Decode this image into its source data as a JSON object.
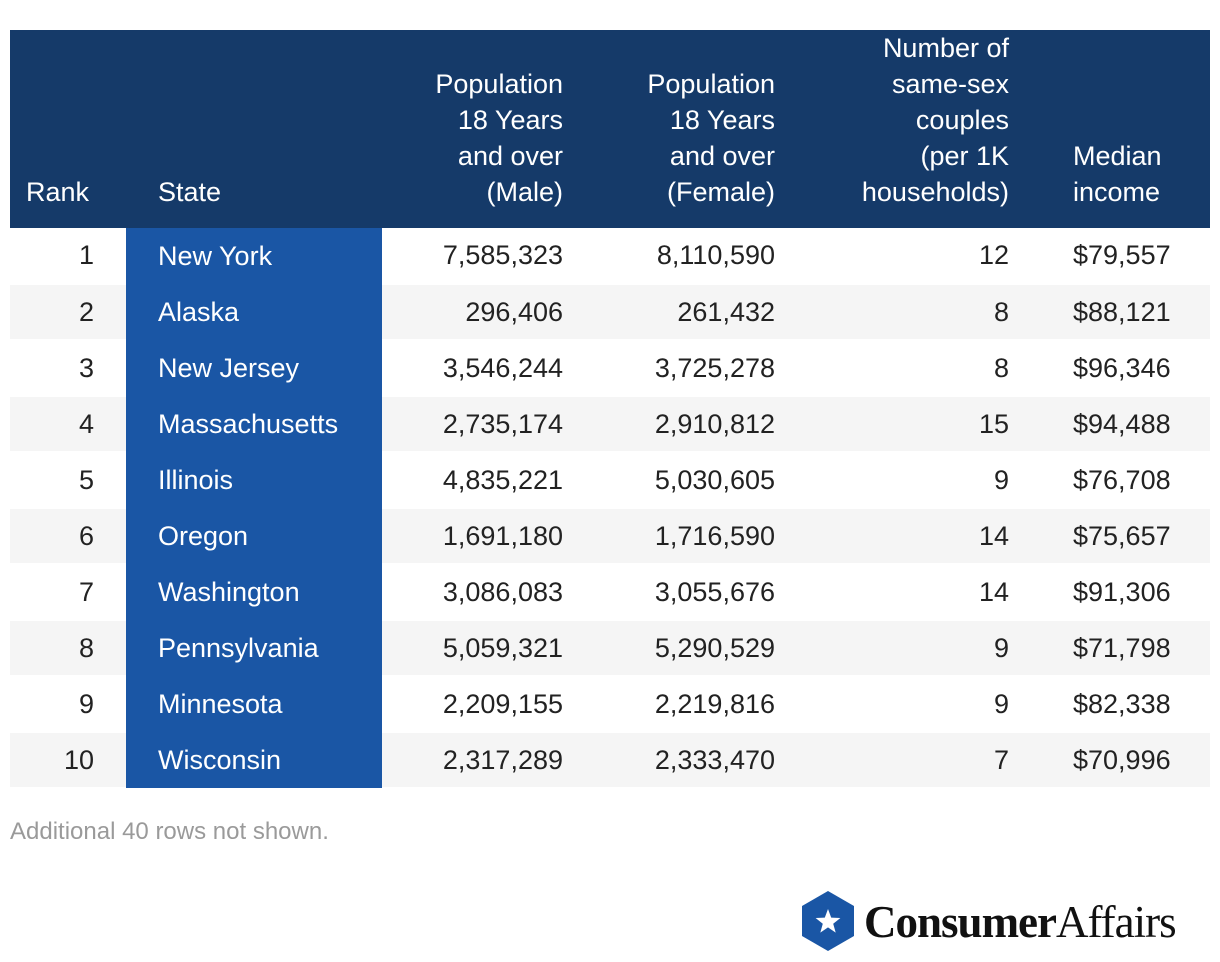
{
  "chart_data": {
    "type": "table",
    "columns": [
      "Rank",
      "State",
      "Population\n18 Years\nand over\n(Male)",
      "Population\n18 Years\nand over\n(Female)",
      "Number of\nsame-sex\ncouples\n(per 1K\nhouseholds)",
      "Median\nincome"
    ],
    "rows": [
      {
        "rank": "1",
        "state": "New York",
        "male": "7,585,323",
        "female": "8,110,590",
        "couples": "12",
        "income": "$79,557"
      },
      {
        "rank": "2",
        "state": "Alaska",
        "male": "296,406",
        "female": "261,432",
        "couples": "8",
        "income": "$88,121"
      },
      {
        "rank": "3",
        "state": "New Jersey",
        "male": "3,546,244",
        "female": "3,725,278",
        "couples": "8",
        "income": "$96,346"
      },
      {
        "rank": "4",
        "state": "Massachusetts",
        "male": "2,735,174",
        "female": "2,910,812",
        "couples": "15",
        "income": "$94,488"
      },
      {
        "rank": "5",
        "state": "Illinois",
        "male": "4,835,221",
        "female": "5,030,605",
        "couples": "9",
        "income": "$76,708"
      },
      {
        "rank": "6",
        "state": "Oregon",
        "male": "1,691,180",
        "female": "1,716,590",
        "couples": "14",
        "income": "$75,657"
      },
      {
        "rank": "7",
        "state": "Washington",
        "male": "3,086,083",
        "female": "3,055,676",
        "couples": "14",
        "income": "$91,306"
      },
      {
        "rank": "8",
        "state": "Pennsylvania",
        "male": "5,059,321",
        "female": "5,290,529",
        "couples": "9",
        "income": "$71,798"
      },
      {
        "rank": "9",
        "state": "Minnesota",
        "male": "2,209,155",
        "female": "2,219,816",
        "couples": "9",
        "income": "$82,338"
      },
      {
        "rank": "10",
        "state": "Wisconsin",
        "male": "2,317,289",
        "female": "2,333,470",
        "couples": "7",
        "income": "$70,996"
      }
    ],
    "footnote": "Additional 40 rows not shown."
  },
  "brand": {
    "name_bold": "Consumer",
    "name_regular": "Affairs",
    "icon": "star-hexagon-icon"
  },
  "colors": {
    "header_bg": "#153a69",
    "state_col_bg": "#1a56a5",
    "stripe_bg": "#f5f5f5",
    "logo_blue": "#1a56a5"
  }
}
